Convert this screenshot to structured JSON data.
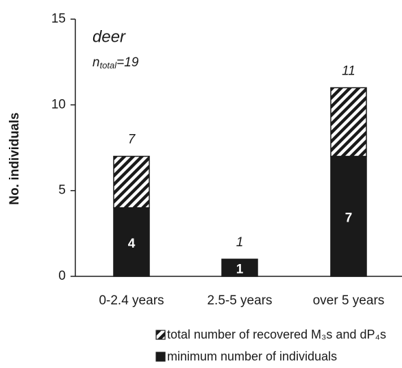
{
  "chart_data": {
    "type": "stacked_bar",
    "ylabel": "No. individuals",
    "annotations": {
      "species": "deer",
      "n": {
        "base": "n",
        "sub": "total",
        "rest": "=19"
      }
    },
    "categories": [
      "0-2.4 years",
      "2.5-5 years",
      "over 5 years"
    ],
    "series": [
      {
        "name": "minimum number of individuals",
        "color": "#1a1a1a",
        "pattern": "solid",
        "values": [
          4,
          1,
          7
        ]
      },
      {
        "name": "total number of recovered M₃s and dP₄s",
        "color": "#1a1a1a",
        "pattern": "hatch",
        "values": [
          3,
          0,
          4
        ]
      }
    ],
    "totals": [
      7,
      1,
      11
    ],
    "ylim": [
      0,
      15
    ],
    "yticks": [
      0,
      5,
      10,
      15
    ],
    "grid": false
  }
}
